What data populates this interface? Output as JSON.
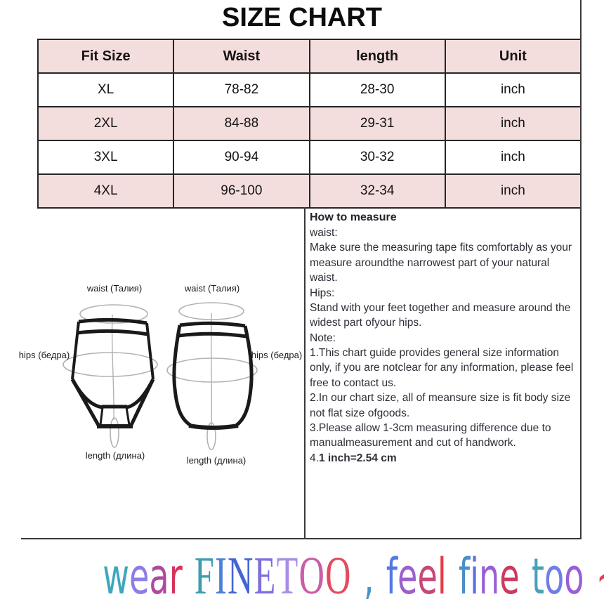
{
  "title": "SIZE CHART",
  "table": {
    "headers": [
      "Fit Size",
      "Waist",
      "length",
      "Unit"
    ],
    "rows": [
      [
        "XL",
        "78-82",
        "28-30",
        "inch"
      ],
      [
        "2XL",
        "84-88",
        "29-31",
        "inch"
      ],
      [
        "3XL",
        "90-94",
        "30-32",
        "inch"
      ],
      [
        "4XL",
        "96-100",
        "32-34",
        "inch"
      ]
    ],
    "stripe_color": "#f4dedd"
  },
  "measure_guide": {
    "heading": "How to measure",
    "lines": [
      "waist:",
      "Make sure the measuring tape fits comfortably as your measure aroundthe narrowest part of your natural waist.",
      "Hips:",
      "Stand with your feet together and measure around the widest part ofyour hips.",
      "Note:",
      "1.This chart guide provides general size information only, if you are notclear for any information, please feel free to contact us.",
      "2.In our chart size, all of meansure size is fit body size not flat size ofgoods.",
      "3.Please allow 1-3cm measuring difference due to manualmeasurement and cut of handwork."
    ],
    "last_line_prefix": "4.",
    "last_line_bold": "1 inch=2.54 cm"
  },
  "diagram": {
    "waist_label": "waist (Талия)",
    "hips_label": "hips (бедра)",
    "length_label": "length (длина)"
  },
  "tagline": {
    "segments": [
      {
        "t": "w",
        "c": "#3ea7bd",
        "f": "sans"
      },
      {
        "t": "e",
        "c": "#8d7ce9",
        "f": "sans"
      },
      {
        "t": "a",
        "c": "#b0489f",
        "f": "sans"
      },
      {
        "t": "r",
        "c": "#d6335c",
        "f": "sans"
      },
      {
        "t": " "
      },
      {
        "t": "F",
        "c": "#3d9dae",
        "f": "serif"
      },
      {
        "t": "I",
        "c": "#4b7fd8",
        "f": "serif"
      },
      {
        "t": "N",
        "c": "#4365d6",
        "f": "serif"
      },
      {
        "t": "E",
        "c": "#7b6fe0",
        "f": "serif"
      },
      {
        "t": "T",
        "c": "#a78ce8",
        "f": "serif"
      },
      {
        "t": "O",
        "c": "#ca5da5",
        "f": "serif"
      },
      {
        "t": "O",
        "c": "#e34b5f",
        "f": "serif"
      },
      {
        "t": " "
      },
      {
        "t": ",",
        "c": "#4796c4",
        "f": "sans"
      },
      {
        "t": " "
      },
      {
        "t": "f",
        "c": "#5478e3",
        "f": "sans"
      },
      {
        "t": "e",
        "c": "#9c60cb",
        "f": "sans"
      },
      {
        "t": "e",
        "c": "#c64877",
        "f": "sans"
      },
      {
        "t": "l",
        "c": "#e53a44",
        "f": "sans"
      },
      {
        "t": " "
      },
      {
        "t": "f",
        "c": "#4a8fc8",
        "f": "sans"
      },
      {
        "t": "i",
        "c": "#5c6fdf",
        "f": "sans"
      },
      {
        "t": "n",
        "c": "#985fd3",
        "f": "sans"
      },
      {
        "t": "e",
        "c": "#cb3a60",
        "f": "sans"
      },
      {
        "t": " "
      },
      {
        "t": "t",
        "c": "#48a1bb",
        "f": "sans"
      },
      {
        "t": "o",
        "c": "#6f7ee9",
        "f": "sans"
      },
      {
        "t": "o",
        "c": "#9a5fd7",
        "f": "sans"
      },
      {
        "t": " "
      },
      {
        "t": "~",
        "c": "#e2424f",
        "f": "sans"
      }
    ]
  }
}
